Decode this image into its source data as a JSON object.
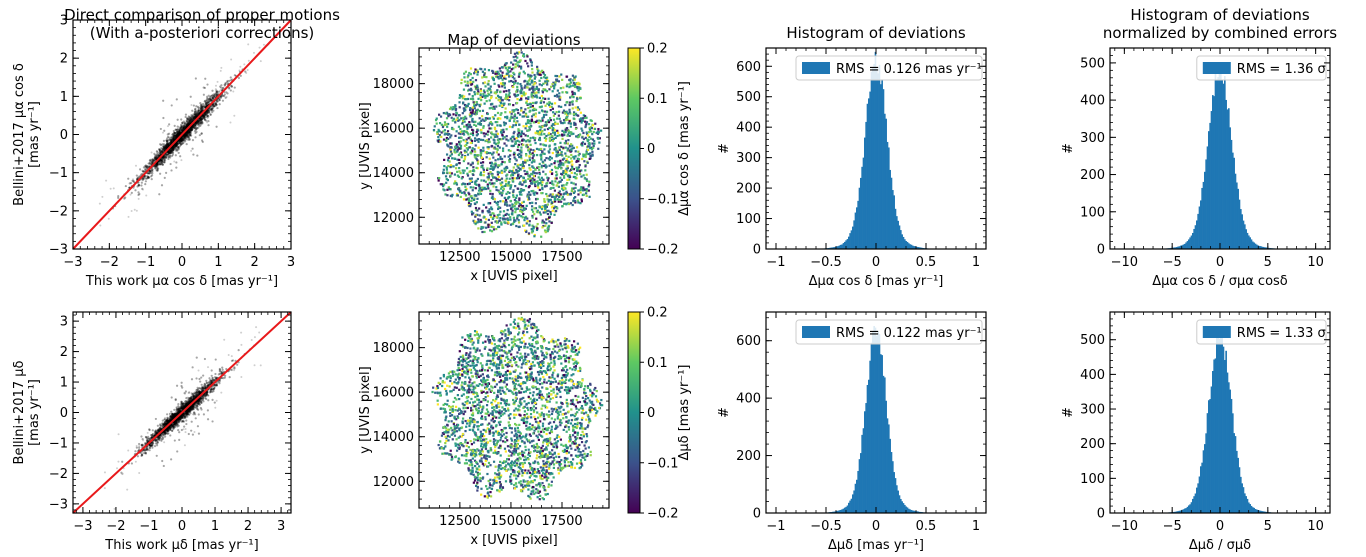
{
  "chart_data": [
    {
      "id": "scatter_top",
      "type": "scatter",
      "title": [
        "Direct comparison of proper motions",
        "(With a-posteriori corrections)"
      ],
      "xlabel": "This work μα cos δ [mas yr⁻¹]",
      "ylabel": [
        "Bellini+2017 μα cos δ",
        "[mas yr⁻¹]"
      ],
      "xlim": [
        -3,
        3
      ],
      "ylim": [
        -3,
        3
      ],
      "xticks": [
        -3,
        -2,
        -1,
        0,
        1,
        2,
        3
      ],
      "yticks": [
        -3,
        -2,
        -1,
        0,
        1,
        2,
        3
      ],
      "trend": {
        "x": [
          -3,
          3
        ],
        "y": [
          -3,
          3
        ],
        "color": "#e8191b"
      },
      "cloud": {
        "x_range": [
          -1.8,
          1.8
        ],
        "spread": 0.12,
        "color": "#000000"
      }
    },
    {
      "id": "map_top",
      "type": "heatmap",
      "title": "Map of deviations",
      "xlabel": "x [UVIS pixel]",
      "ylabel": "y [UVIS pixel]",
      "xlim": [
        10500,
        19800
      ],
      "ylim": [
        10800,
        19600
      ],
      "xticks": [
        12500,
        15000,
        17500
      ],
      "yticks": [
        12000,
        14000,
        16000,
        18000
      ],
      "colorbar": {
        "label": "Δμα cos δ [mas yr⁻¹]",
        "range": [
          -0.2,
          0.2
        ],
        "ticks": [
          -0.2,
          -0.1,
          0.0,
          0.1,
          0.2
        ],
        "colormap": "viridis"
      }
    },
    {
      "id": "hist_top",
      "type": "bar",
      "title": "Histogram of deviations",
      "xlabel": "Δμα cos δ [mas yr⁻¹]",
      "ylabel": "#",
      "xlim": [
        -1.1,
        1.1
      ],
      "ylim": [
        0,
        660
      ],
      "xticks": [
        -1.0,
        -0.5,
        0.0,
        0.5,
        1.0
      ],
      "yticks": [
        0,
        100,
        200,
        300,
        400,
        500,
        600
      ],
      "distribution": {
        "center": 0.0,
        "peak": 610,
        "width": 0.105,
        "tail_width": 0.2
      },
      "legend": {
        "text": "RMS = 0.126 mas yr⁻¹",
        "position": "top-right"
      },
      "color": "#1f77b4"
    },
    {
      "id": "histn_top",
      "type": "bar",
      "title": [
        "Histogram of deviations",
        "normalized by combined errors"
      ],
      "xlabel": "Δμα cos δ / σμα cosδ",
      "ylabel": "#",
      "xlim": [
        -11.5,
        11.5
      ],
      "ylim": [
        0,
        540
      ],
      "xticks": [
        -10,
        -5,
        0,
        5,
        10
      ],
      "yticks": [
        0,
        100,
        200,
        300,
        400,
        500
      ],
      "distribution": {
        "center": 0.0,
        "peak": 470,
        "width": 1.2,
        "tail_width": 2.2
      },
      "legend": {
        "text": "RMS = 1.36 σ",
        "position": "top-right"
      },
      "color": "#1f77b4"
    },
    {
      "id": "scatter_bottom",
      "type": "scatter",
      "title": "",
      "xlabel": "This work μδ [mas yr⁻¹]",
      "ylabel": [
        "Bellini+2017 μδ",
        "[mas yr⁻¹]"
      ],
      "xlim": [
        -3.3,
        3.3
      ],
      "ylim": [
        -3.3,
        3.3
      ],
      "xticks": [
        -3,
        -2,
        -1,
        0,
        1,
        2,
        3
      ],
      "yticks": [
        -3,
        -2,
        -1,
        0,
        1,
        2,
        3
      ],
      "trend": {
        "x": [
          -3.3,
          3.3
        ],
        "y": [
          -3.3,
          3.3
        ],
        "color": "#e8191b"
      },
      "cloud": {
        "x_range": [
          -1.8,
          1.8
        ],
        "spread": 0.12,
        "color": "#000000"
      }
    },
    {
      "id": "map_bottom",
      "type": "heatmap",
      "title": "",
      "xlabel": "x [UVIS pixel]",
      "ylabel": "y [UVIS pixel]",
      "xlim": [
        10500,
        19800
      ],
      "ylim": [
        10800,
        19600
      ],
      "xticks": [
        12500,
        15000,
        17500
      ],
      "yticks": [
        12000,
        14000,
        16000,
        18000
      ],
      "colorbar": {
        "label": "Δμδ [mas yr⁻¹]",
        "range": [
          -0.2,
          0.2
        ],
        "ticks": [
          -0.2,
          -0.1,
          0.0,
          0.1,
          0.2
        ],
        "colormap": "viridis"
      }
    },
    {
      "id": "hist_bottom",
      "type": "bar",
      "title": "",
      "xlabel": "Δμδ [mas yr⁻¹]",
      "ylabel": "#",
      "xlim": [
        -1.1,
        1.1
      ],
      "ylim": [
        0,
        700
      ],
      "xticks": [
        -1.0,
        -0.5,
        0.0,
        0.5,
        1.0
      ],
      "yticks": [
        0,
        200,
        400,
        600
      ],
      "distribution": {
        "center": 0.0,
        "peak": 620,
        "width": 0.1,
        "tail_width": 0.19
      },
      "legend": {
        "text": "RMS = 0.122 mas yr⁻¹",
        "position": "top-right"
      },
      "color": "#1f77b4"
    },
    {
      "id": "histn_bottom",
      "type": "bar",
      "title": "",
      "xlabel": "Δμδ / σμδ",
      "ylabel": "#",
      "xlim": [
        -11.5,
        11.5
      ],
      "ylim": [
        0,
        580
      ],
      "xticks": [
        -10,
        -5,
        0,
        5,
        10
      ],
      "yticks": [
        0,
        100,
        200,
        300,
        400,
        500
      ],
      "distribution": {
        "center": 0.0,
        "peak": 500,
        "width": 1.15,
        "tail_width": 2.1
      },
      "legend": {
        "text": "RMS = 1.33 σ",
        "position": "top-right"
      },
      "color": "#1f77b4"
    }
  ]
}
